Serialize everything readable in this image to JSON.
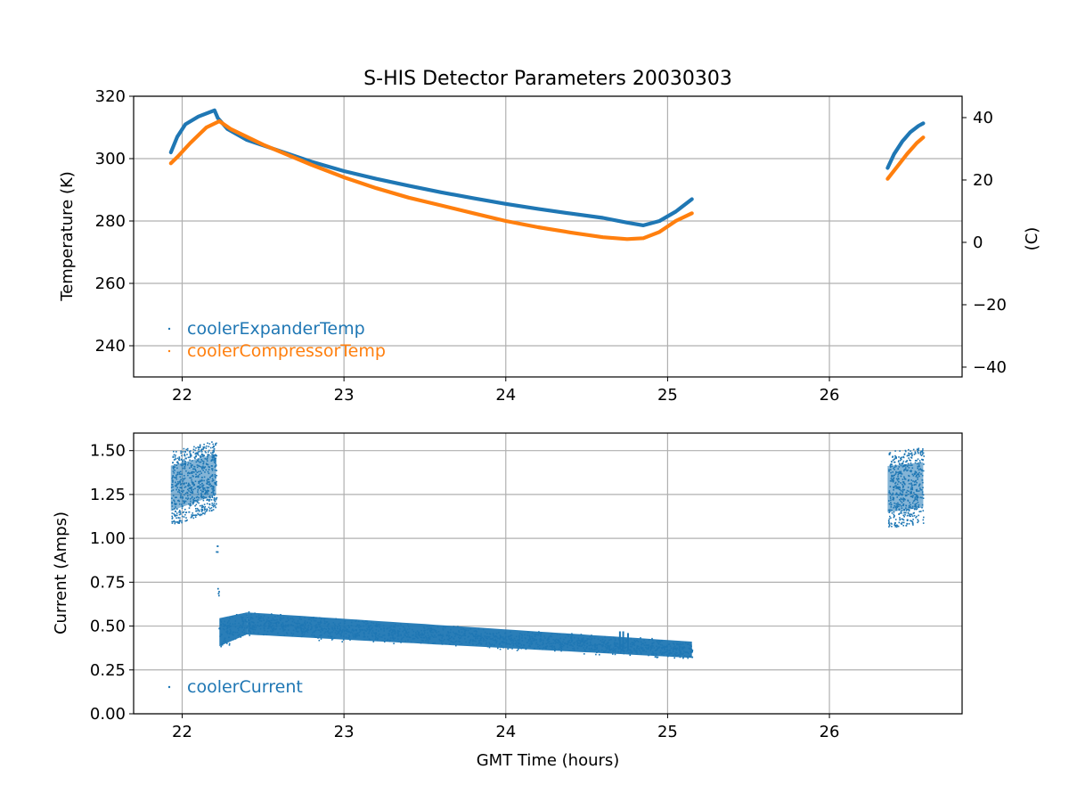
{
  "title": "S-HIS Detector Parameters 20030303",
  "colors": {
    "expander": "#1f77b4",
    "compressor": "#ff7f0e",
    "current": "#1f77b4",
    "grid": "#b0b0b0"
  },
  "chart_data": [
    {
      "type": "scatter",
      "title": "S-HIS Detector Parameters 20030303",
      "xlabel": "",
      "ylabel": "Temperature (K)",
      "y2label": "(C)",
      "xlim": [
        21.7,
        26.82
      ],
      "ylim": [
        230,
        320
      ],
      "y2lim": [
        -43.15,
        46.85
      ],
      "xticks": [
        22,
        23,
        24,
        25,
        26
      ],
      "yticks": [
        240,
        260,
        280,
        300,
        320
      ],
      "y2ticks": [
        -40,
        -20,
        0,
        20,
        40
      ],
      "grid": true,
      "legend_position": "lower-left",
      "series": [
        {
          "name": "coolerExpanderTemp",
          "color": "#1f77b4",
          "points": [
            [
              21.93,
              302.0
            ],
            [
              21.97,
              307.0
            ],
            [
              22.02,
              311.0
            ],
            [
              22.1,
              313.5
            ],
            [
              22.2,
              315.5
            ],
            [
              22.22,
              313.0
            ],
            [
              22.28,
              309.5
            ],
            [
              22.4,
              306.0
            ],
            [
              22.6,
              302.5
            ],
            [
              22.8,
              299.0
            ],
            [
              23.0,
              296.0
            ],
            [
              23.2,
              293.5
            ],
            [
              23.4,
              291.3
            ],
            [
              23.6,
              289.2
            ],
            [
              23.8,
              287.3
            ],
            [
              24.0,
              285.5
            ],
            [
              24.2,
              283.9
            ],
            [
              24.4,
              282.4
            ],
            [
              24.6,
              281.0
            ],
            [
              24.75,
              279.5
            ],
            [
              24.85,
              278.6
            ],
            [
              24.95,
              280.0
            ],
            [
              25.05,
              283.0
            ],
            [
              25.15,
              287.0
            ]
          ]
        },
        {
          "name": "coolerCompressorTemp",
          "color": "#ff7f0e",
          "points": [
            [
              21.93,
              298.5
            ],
            [
              21.97,
              300.5
            ],
            [
              22.05,
              305.0
            ],
            [
              22.15,
              310.0
            ],
            [
              22.23,
              312.0
            ],
            [
              22.3,
              309.5
            ],
            [
              22.5,
              304.5
            ],
            [
              22.8,
              298.0
            ],
            [
              23.0,
              294.0
            ],
            [
              23.2,
              290.5
            ],
            [
              23.4,
              287.5
            ],
            [
              23.6,
              285.0
            ],
            [
              23.8,
              282.5
            ],
            [
              24.0,
              280.0
            ],
            [
              24.2,
              278.0
            ],
            [
              24.4,
              276.3
            ],
            [
              24.6,
              274.8
            ],
            [
              24.75,
              274.2
            ],
            [
              24.85,
              274.5
            ],
            [
              24.95,
              276.5
            ],
            [
              25.05,
              280.0
            ],
            [
              25.15,
              282.5
            ]
          ]
        },
        {
          "name": "coolerExpanderTemp",
          "color": "#1f77b4",
          "points": [
            [
              26.36,
              297.0
            ],
            [
              26.4,
              301.5
            ],
            [
              26.45,
              305.5
            ],
            [
              26.5,
              308.5
            ],
            [
              26.55,
              310.5
            ],
            [
              26.58,
              311.3
            ]
          ]
        },
        {
          "name": "coolerCompressorTemp",
          "color": "#ff7f0e",
          "points": [
            [
              26.36,
              293.5
            ],
            [
              26.42,
              297.5
            ],
            [
              26.48,
              301.5
            ],
            [
              26.54,
              305.0
            ],
            [
              26.58,
              306.8
            ]
          ]
        }
      ]
    },
    {
      "type": "scatter",
      "xlabel": "GMT Time (hours)",
      "ylabel": "Current (Amps)",
      "xlim": [
        21.7,
        26.82
      ],
      "ylim": [
        0.0,
        1.6
      ],
      "xticks": [
        22,
        23,
        24,
        25,
        26
      ],
      "yticks": [
        0.0,
        0.25,
        0.5,
        0.75,
        1.0,
        1.25,
        1.5
      ],
      "grid": true,
      "legend_position": "lower-left",
      "series": [
        {
          "name": "coolerCurrent",
          "color": "#1f77b4",
          "bands": [
            {
              "x": [
                21.93,
                22.21
              ],
              "lower_start": 1.07,
              "lower_end": 1.17,
              "upper_start": 1.5,
              "upper_end": 1.56
            },
            {
              "x": [
                22.23,
                22.4
              ],
              "lower_start": 0.37,
              "lower_end": 0.44,
              "upper_start": 0.56,
              "upper_end": 0.59
            },
            {
              "x": [
                22.4,
                25.15
              ],
              "lower_start": 0.44,
              "lower_end": 0.31,
              "upper_start": 0.59,
              "upper_end": 0.42
            },
            {
              "x": [
                26.36,
                26.58
              ],
              "lower_start": 1.06,
              "lower_end": 1.09,
              "upper_start": 1.5,
              "upper_end": 1.52
            }
          ],
          "transition": [
            [
              22.19,
              1.5
            ],
            [
              22.2,
              1.2
            ],
            [
              22.21,
              0.95
            ],
            [
              22.22,
              0.7
            ],
            [
              22.23,
              0.5
            ],
            [
              22.24,
              0.38
            ]
          ],
          "spikes": [
            [
              24.7,
              0.47
            ],
            [
              24.72,
              0.47
            ],
            [
              24.75,
              0.46
            ]
          ]
        }
      ]
    }
  ],
  "legend_top": [
    {
      "label": "coolerExpanderTemp",
      "color": "#1f77b4"
    },
    {
      "label": "coolerCompressorTemp",
      "color": "#ff7f0e"
    }
  ],
  "legend_bottom": [
    {
      "label": "coolerCurrent",
      "color": "#1f77b4"
    }
  ]
}
